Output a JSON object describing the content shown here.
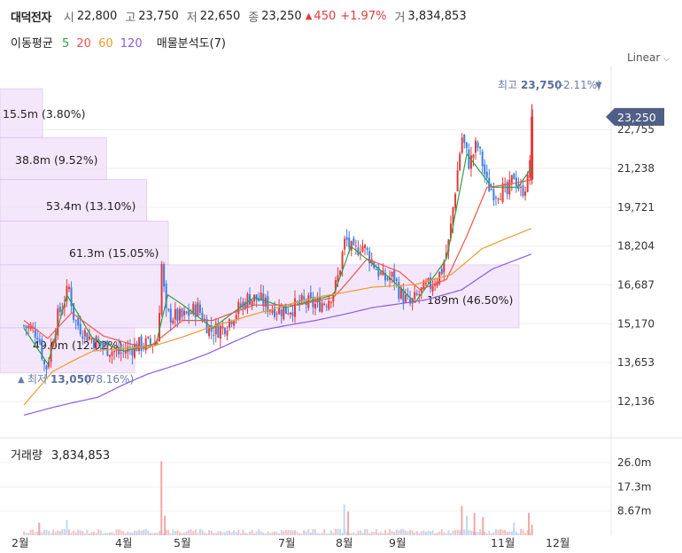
{
  "header": {
    "name": "대덕전자",
    "open_label": "시",
    "open": "22,800",
    "high_label": "고",
    "high": "23,750",
    "low_label": "저",
    "low": "22,650",
    "close_label": "종",
    "close": "23,250",
    "change_arrow": "▲",
    "change": "450",
    "change_pct": "+1.97%",
    "volume_label": "거",
    "volume": "3,834,853"
  },
  "indicators": {
    "ma_label": "이동평균",
    "ma": [
      {
        "period": "5",
        "color": "#2ea043"
      },
      {
        "period": "20",
        "color": "#f0534b"
      },
      {
        "period": "60",
        "color": "#f09a2e"
      },
      {
        "period": "120",
        "color": "#8c5ae6"
      }
    ],
    "volume_profile_label": "매물분석도(7)"
  },
  "scale": {
    "mode": "Linear",
    "chevron_icon": "chevron-down-icon"
  },
  "colors": {
    "up": "#e23b3b",
    "down": "#3d7fe0",
    "profile": "#f2e0fa",
    "profile_edge": "#d9b5ee",
    "current_tag": "#4f5f86"
  },
  "chart_data": [
    {
      "type": "candlestick",
      "period": "daily",
      "y_range": [
        11200,
        24700
      ],
      "y_ticks": [
        "23,250",
        "22,755",
        "21,238",
        "19,721",
        "18,204",
        "16,687",
        "15,170",
        "13,653",
        "12,136"
      ],
      "x_ticks": [
        "2월",
        "4월",
        "5월",
        "7월",
        "8월",
        "9월",
        "11월",
        "12월"
      ],
      "current_price": "23,250",
      "high_annotation": {
        "label": "최고",
        "value": "23,750",
        "pct": "(-2.11%)",
        "marker": "▼"
      },
      "low_annotation": {
        "label": "최저",
        "value": "13,050",
        "pct": "(78.16%)",
        "marker": "▲"
      },
      "volume_profile": [
        {
          "label": "15.5m (3.80%)"
        },
        {
          "label": "38.8m (9.52%)"
        },
        {
          "label": "53.4m (13.10%)"
        },
        {
          "label": "61.3m (15.05%)"
        },
        {
          "label": "189m (46.50%)"
        },
        {
          "label": "49.0m (12.02%)"
        }
      ],
      "profile_bands": [
        {
          "lo": 22440,
          "hi": 24350,
          "volume": 15.5
        },
        {
          "lo": 20800,
          "hi": 22440,
          "volume": 38.8
        },
        {
          "lo": 19180,
          "hi": 20800,
          "volume": 53.4
        },
        {
          "lo": 17470,
          "hi": 19180,
          "volume": 61.3
        },
        {
          "lo": 15010,
          "hi": 17470,
          "volume": 189
        },
        {
          "lo": 13250,
          "hi": 15010,
          "volume": 49.0
        }
      ],
      "ohlc_knots": [
        {
          "m": 0.0,
          "c": 15100
        },
        {
          "m": 0.3,
          "c": 14800
        },
        {
          "m": 0.45,
          "c": 13300
        },
        {
          "m": 0.7,
          "c": 15400
        },
        {
          "m": 0.95,
          "c": 16600
        },
        {
          "m": 1.05,
          "c": 15300
        },
        {
          "m": 1.3,
          "c": 14700
        },
        {
          "m": 1.6,
          "c": 14300
        },
        {
          "m": 1.9,
          "c": 14000
        },
        {
          "m": 2.2,
          "c": 14300
        },
        {
          "m": 2.45,
          "c": 14400
        },
        {
          "m": 2.58,
          "c": 14500
        },
        {
          "m": 2.64,
          "c": 17600
        },
        {
          "m": 2.72,
          "c": 15500
        },
        {
          "m": 3.0,
          "c": 15400
        },
        {
          "m": 3.3,
          "c": 15800
        },
        {
          "m": 3.55,
          "c": 14900
        },
        {
          "m": 3.8,
          "c": 15000
        },
        {
          "m": 4.0,
          "c": 15500
        },
        {
          "m": 4.3,
          "c": 16200
        },
        {
          "m": 4.5,
          "c": 16100
        },
        {
          "m": 4.7,
          "c": 15800
        },
        {
          "m": 5.0,
          "c": 15700
        },
        {
          "m": 5.3,
          "c": 16000
        },
        {
          "m": 5.5,
          "c": 15900
        },
        {
          "m": 5.7,
          "c": 16100
        },
        {
          "m": 5.85,
          "c": 16700
        },
        {
          "m": 6.0,
          "c": 18500
        },
        {
          "m": 6.15,
          "c": 17900
        },
        {
          "m": 6.3,
          "c": 18300
        },
        {
          "m": 6.5,
          "c": 17600
        },
        {
          "m": 6.7,
          "c": 16900
        },
        {
          "m": 6.9,
          "c": 17000
        },
        {
          "m": 7.0,
          "c": 16400
        },
        {
          "m": 7.2,
          "c": 15900
        },
        {
          "m": 7.45,
          "c": 16500
        },
        {
          "m": 7.6,
          "c": 16700
        },
        {
          "m": 7.8,
          "c": 17200
        },
        {
          "m": 7.95,
          "c": 18400
        },
        {
          "m": 8.05,
          "c": 20100
        },
        {
          "m": 8.2,
          "c": 22500
        },
        {
          "m": 8.35,
          "c": 21400
        },
        {
          "m": 8.5,
          "c": 22200
        },
        {
          "m": 8.6,
          "c": 21500
        },
        {
          "m": 8.7,
          "c": 20600
        },
        {
          "m": 8.85,
          "c": 20300
        },
        {
          "m": 9.0,
          "c": 20400
        },
        {
          "m": 9.1,
          "c": 20200
        },
        {
          "m": 9.22,
          "c": 21000
        },
        {
          "m": 9.35,
          "c": 20300
        },
        {
          "m": 9.5,
          "c": 20800
        },
        {
          "m": 9.56,
          "c": 23250
        }
      ],
      "ma_knots": {
        "5": [
          {
            "m": 0.0,
            "c": 15000
          },
          {
            "m": 0.5,
            "c": 13600
          },
          {
            "m": 0.9,
            "c": 16300
          },
          {
            "m": 1.4,
            "c": 14600
          },
          {
            "m": 2.0,
            "c": 14100
          },
          {
            "m": 2.55,
            "c": 14400
          },
          {
            "m": 2.75,
            "c": 16300
          },
          {
            "m": 3.6,
            "c": 15000
          },
          {
            "m": 4.4,
            "c": 16200
          },
          {
            "m": 5.0,
            "c": 15800
          },
          {
            "m": 5.8,
            "c": 16300
          },
          {
            "m": 6.1,
            "c": 18200
          },
          {
            "m": 6.8,
            "c": 17000
          },
          {
            "m": 7.3,
            "c": 16000
          },
          {
            "m": 7.9,
            "c": 17700
          },
          {
            "m": 8.3,
            "c": 21800
          },
          {
            "m": 8.8,
            "c": 20500
          },
          {
            "m": 9.3,
            "c": 20500
          },
          {
            "m": 9.56,
            "c": 21300
          }
        ],
        "20": [
          {
            "m": 0.0,
            "c": 15300
          },
          {
            "m": 0.5,
            "c": 14600
          },
          {
            "m": 1.0,
            "c": 15600
          },
          {
            "m": 1.6,
            "c": 14700
          },
          {
            "m": 2.4,
            "c": 14200
          },
          {
            "m": 3.0,
            "c": 15300
          },
          {
            "m": 3.6,
            "c": 15300
          },
          {
            "m": 4.4,
            "c": 15900
          },
          {
            "m": 5.2,
            "c": 15900
          },
          {
            "m": 5.8,
            "c": 16200
          },
          {
            "m": 6.4,
            "c": 17700
          },
          {
            "m": 7.0,
            "c": 17200
          },
          {
            "m": 7.4,
            "c": 16500
          },
          {
            "m": 7.9,
            "c": 16900
          },
          {
            "m": 8.3,
            "c": 18600
          },
          {
            "m": 8.7,
            "c": 20500
          },
          {
            "m": 9.1,
            "c": 20600
          },
          {
            "m": 9.56,
            "c": 20800
          }
        ],
        "60": [
          {
            "m": 0.0,
            "c": 12000
          },
          {
            "m": 0.6,
            "c": 13300
          },
          {
            "m": 1.4,
            "c": 14100
          },
          {
            "m": 2.5,
            "c": 14300
          },
          {
            "m": 3.5,
            "c": 15000
          },
          {
            "m": 4.5,
            "c": 15600
          },
          {
            "m": 5.5,
            "c": 16200
          },
          {
            "m": 6.5,
            "c": 16600
          },
          {
            "m": 7.3,
            "c": 16700
          },
          {
            "m": 8.0,
            "c": 17100
          },
          {
            "m": 8.6,
            "c": 18100
          },
          {
            "m": 9.2,
            "c": 18600
          },
          {
            "m": 9.56,
            "c": 18900
          }
        ],
        "120": [
          {
            "m": 0.0,
            "c": 11600
          },
          {
            "m": 0.6,
            "c": 11900
          },
          {
            "m": 1.5,
            "c": 12300
          },
          {
            "m": 2.4,
            "c": 13200
          },
          {
            "m": 3.5,
            "c": 14000
          },
          {
            "m": 4.5,
            "c": 14900
          },
          {
            "m": 5.5,
            "c": 15300
          },
          {
            "m": 6.5,
            "c": 15800
          },
          {
            "m": 7.5,
            "c": 16100
          },
          {
            "m": 8.2,
            "c": 16500
          },
          {
            "m": 8.8,
            "c": 17300
          },
          {
            "m": 9.56,
            "c": 17900
          }
        ]
      }
    },
    {
      "type": "bar",
      "title": "거래량",
      "last_value": "3,834,853",
      "y_range": [
        0,
        33000000
      ],
      "y_ticks": [
        "26.0m",
        "17.3m",
        "8.67m"
      ],
      "spikes": [
        {
          "m": 0.32,
          "v": 4500000
        },
        {
          "m": 0.9,
          "v": 5500000
        },
        {
          "m": 2.64,
          "v": 26500000
        },
        {
          "m": 2.7,
          "v": 7000000
        },
        {
          "m": 5.98,
          "v": 11000000
        },
        {
          "m": 6.05,
          "v": 8500000
        },
        {
          "m": 8.2,
          "v": 10500000
        },
        {
          "m": 8.3,
          "v": 7000000
        },
        {
          "m": 8.45,
          "v": 8000000
        },
        {
          "m": 8.62,
          "v": 6500000
        },
        {
          "m": 9.22,
          "v": 4500000
        },
        {
          "m": 9.5,
          "v": 8000000
        },
        {
          "m": 9.56,
          "v": 3834853
        }
      ]
    }
  ]
}
